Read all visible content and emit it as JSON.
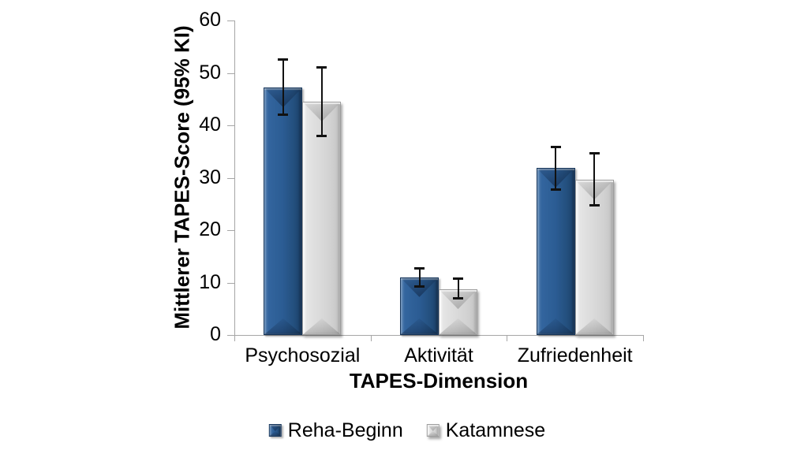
{
  "chart_data": {
    "type": "bar",
    "title": "",
    "xlabel": "TAPES-Dimension",
    "ylabel": "Mittlerer TAPES-Score (95% KI)",
    "categories": [
      "Psychosozial",
      "Aktivität",
      "Zufriedenheit"
    ],
    "series": [
      {
        "name": "Reha-Beginn",
        "color": "#2b5c93",
        "values": [
          47.2,
          11.0,
          31.9
        ],
        "ci_low": [
          42.0,
          9.3,
          27.8
        ],
        "ci_high": [
          52.5,
          12.7,
          35.9
        ]
      },
      {
        "name": "Katamnese",
        "color": "#d9d9d9",
        "values": [
          44.5,
          8.7,
          29.6
        ],
        "ci_low": [
          38.0,
          7.0,
          24.7
        ],
        "ci_high": [
          51.0,
          10.7,
          34.7
        ]
      }
    ],
    "ylim": [
      0,
      60
    ],
    "yticks": [
      0,
      10,
      20,
      30,
      40,
      50,
      60
    ],
    "grid": false,
    "error_bars": "95% KI",
    "legend_position": "bottom"
  }
}
